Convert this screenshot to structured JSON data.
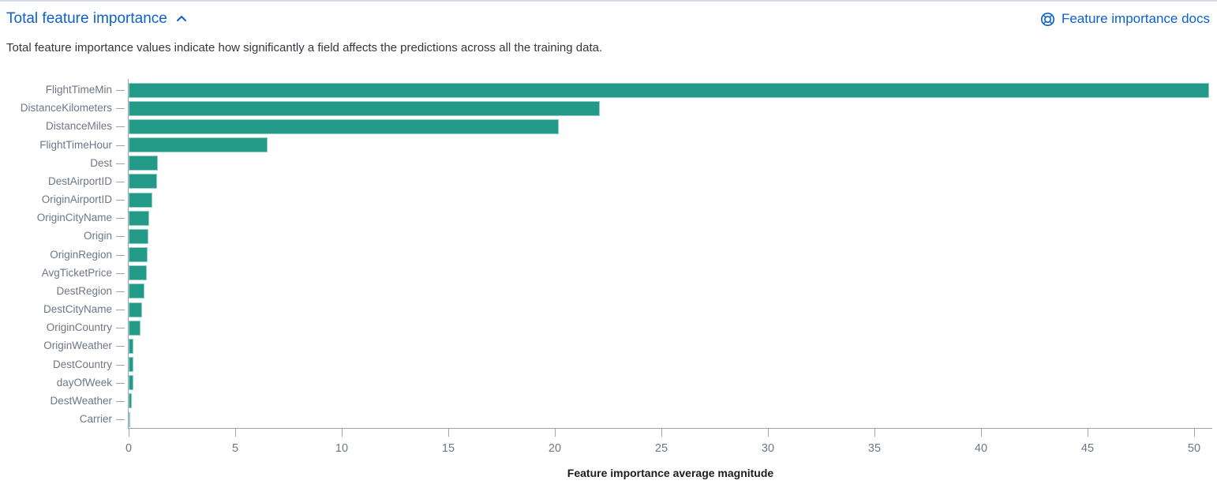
{
  "header": {
    "title": "Total feature importance",
    "docs_link_label": "Feature importance docs"
  },
  "subtitle": "Total feature importance values indicate how significantly a field affects the predictions across all the training data.",
  "icons": {
    "collapse": "chevron-up-icon",
    "help": "lifebuoy-help-icon"
  },
  "colors": {
    "link_blue": "#0D61CB",
    "bar_teal": "#229A87",
    "bar_border": "#8FCFC4",
    "axis_line": "#9AA4B8",
    "tick_label": "#6E7687",
    "subtitle_text": "#343741",
    "axis_title_text": "#1A1C21",
    "top_rule": "#D3DAE6"
  },
  "chart_data": {
    "type": "bar",
    "orientation": "horizontal",
    "title": "",
    "xlabel": "Feature importance average magnitude",
    "ylabel": "",
    "categories": [
      "FlightTimeMin",
      "DistanceKilometers",
      "DistanceMiles",
      "FlightTimeHour",
      "Dest",
      "DestAirportID",
      "OriginAirportID",
      "OriginCityName",
      "Origin",
      "OriginRegion",
      "AvgTicketPrice",
      "DestRegion",
      "DestCityName",
      "OriginCountry",
      "OriginWeather",
      "DestCountry",
      "dayOfWeek",
      "DestWeather",
      "Carrier"
    ],
    "values": [
      50.7,
      22.1,
      20.2,
      6.5,
      1.36,
      1.33,
      1.1,
      0.98,
      0.94,
      0.9,
      0.86,
      0.73,
      0.62,
      0.56,
      0.24,
      0.21,
      0.21,
      0.16,
      0.05
    ],
    "xticks": [
      0,
      5,
      10,
      15,
      20,
      25,
      30,
      35,
      40,
      45,
      50
    ],
    "xlim": [
      0,
      50.85
    ],
    "grid": false,
    "legend": "none"
  }
}
